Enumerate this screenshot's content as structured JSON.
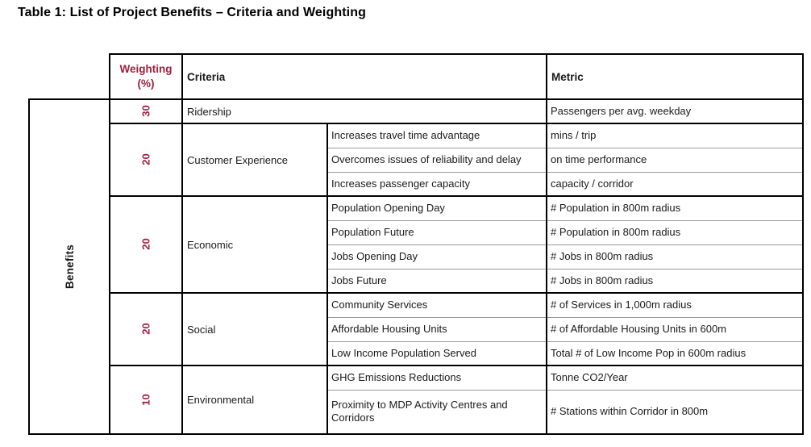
{
  "title": "Table 1: List of Project Benefits – Criteria and Weighting",
  "side_label": "Benefits",
  "colors": {
    "accent_red": "#A41E3C",
    "border_black": "#000000",
    "border_gray": "#999999",
    "text_dark": "#1a1a1a"
  },
  "header": {
    "weighting": "Weighting (%)",
    "criteria": "Criteria",
    "metric": "Metric"
  },
  "groups": [
    {
      "weighting": "30",
      "criteria": "Ridership",
      "rows": [
        {
          "sub": null,
          "metric": "Passengers per avg. weekday"
        }
      ]
    },
    {
      "weighting": "20",
      "criteria": "Customer Experience",
      "rows": [
        {
          "sub": "Increases travel time advantage",
          "metric": "mins / trip"
        },
        {
          "sub": "Overcomes issues of reliability and delay",
          "metric": "on time performance"
        },
        {
          "sub": "Increases passenger capacity",
          "metric": "capacity / corridor"
        }
      ]
    },
    {
      "weighting": "20",
      "criteria": "Economic",
      "rows": [
        {
          "sub": "Population Opening Day",
          "metric": "# Population in 800m radius"
        },
        {
          "sub": "Population Future",
          "metric": "# Population in 800m radius"
        },
        {
          "sub": "Jobs Opening Day",
          "metric": "# Jobs in 800m radius"
        },
        {
          "sub": "Jobs Future",
          "metric": "# Jobs in 800m radius"
        }
      ]
    },
    {
      "weighting": "20",
      "criteria": "Social",
      "rows": [
        {
          "sub": "Community Services",
          "metric": "# of Services in 1,000m radius"
        },
        {
          "sub": "Affordable Housing Units",
          "metric": "# of Affordable Housing Units in 600m"
        },
        {
          "sub": "Low Income Population Served",
          "metric": "Total # of Low Income Pop in 600m radius"
        }
      ]
    },
    {
      "weighting": "10",
      "criteria": "Environmental",
      "rows": [
        {
          "sub": "GHG Emissions Reductions",
          "metric": "Tonne CO2/Year"
        },
        {
          "sub": "Proximity to MDP Activity Centres and Corridors",
          "metric": "# Stations within Corridor in 800m",
          "tall": true
        }
      ]
    }
  ]
}
